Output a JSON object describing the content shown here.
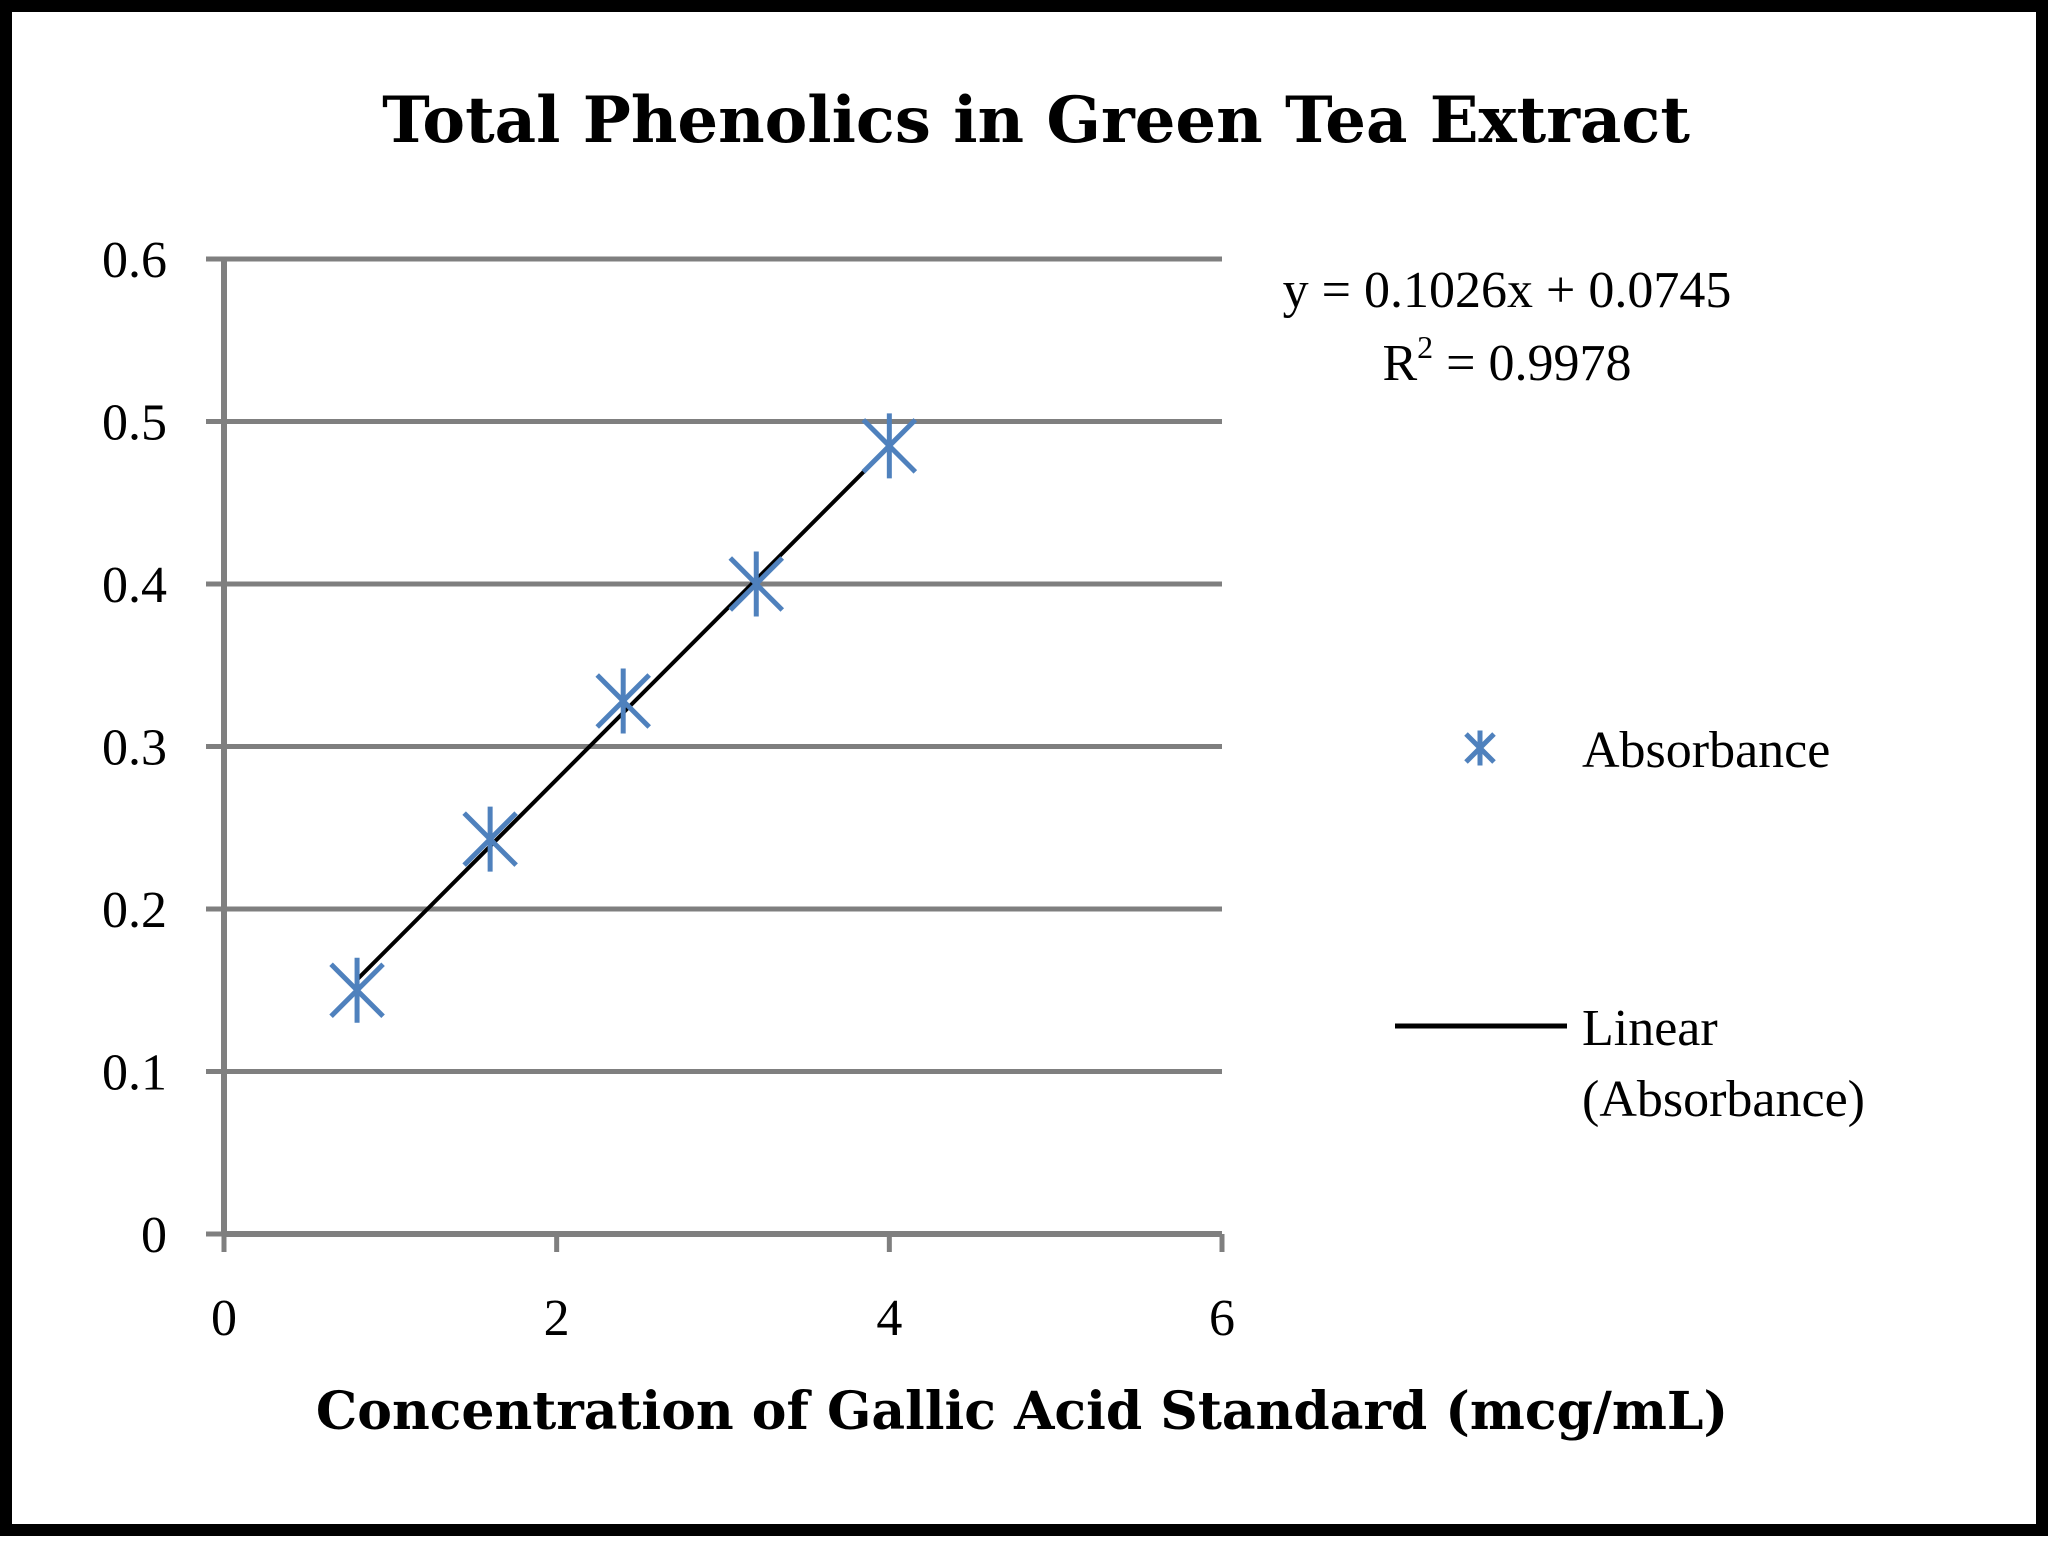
{
  "chart_data": {
    "type": "scatter",
    "title": "Total Phenolics in Green Tea Extract",
    "xlabel": "Concentration of Gallic Acid Standard (mcg/mL)",
    "ylabel": "",
    "xlim": [
      0,
      6
    ],
    "ylim": [
      0,
      0.6
    ],
    "x_ticks": [
      "0",
      "2",
      "4",
      "6"
    ],
    "y_ticks": [
      "0",
      "0.1",
      "0.2",
      "0.3",
      "0.4",
      "0.5",
      "0.6"
    ],
    "grid": "horizontal",
    "legend_position": "right",
    "series": [
      {
        "name": "Absorbance",
        "marker": "asterisk",
        "color": "#4F81BD",
        "x": [
          0.8,
          1.6,
          2.4,
          3.2,
          4.0
        ],
        "y": [
          0.15,
          0.243,
          0.328,
          0.4,
          0.485
        ]
      }
    ],
    "trendline": {
      "name": "Linear (Absorbance)",
      "legend_lines": [
        "Linear",
        "(Absorbance)"
      ],
      "color": "#000000",
      "slope": 0.1026,
      "intercept": 0.0745,
      "x_range": [
        0.8,
        4.0
      ],
      "equation": "y = 0.1026x + 0.0745",
      "r2_prefix": "R",
      "r2_exponent": "2",
      "r2_value": " = 0.9978"
    }
  },
  "colors": {
    "gridline": "#7f7f7f",
    "marker": "#4F81BD",
    "text": "#000000"
  }
}
